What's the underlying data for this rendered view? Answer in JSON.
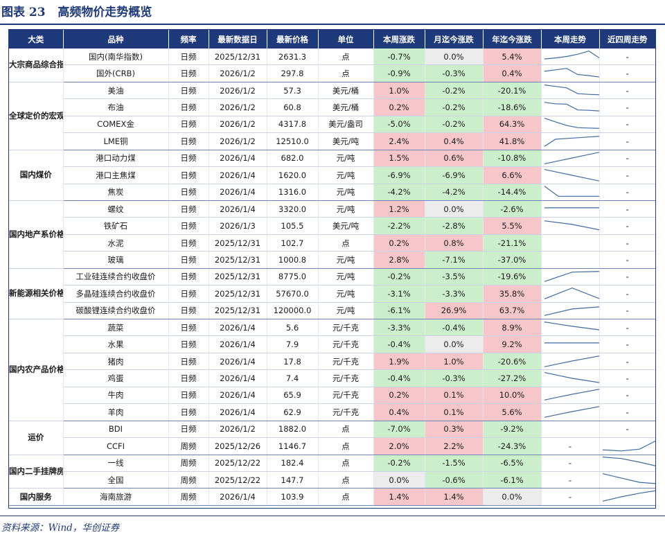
{
  "figure": {
    "label": "图表 23",
    "title": "高频物价走势概览"
  },
  "header": [
    "大类",
    "品种",
    "频率",
    "最新数据日",
    "最新价格",
    "单位",
    "本周涨跌",
    "月迄今涨跌",
    "年迄今涨跌",
    "本周走势",
    "近四周走势"
  ],
  "groups": [
    {
      "category": "大宗商品综合指数",
      "rows": [
        {
          "item": "国内(南华指数)",
          "freq": "日频",
          "date": "2025/12/31",
          "price": "2631.3",
          "unit": "点",
          "wk": "-0.7%",
          "mtd": "0.0%",
          "ytd": "5.4%",
          "week_trend": [
            2,
            2.3,
            2.7,
            3.3,
            4.2,
            2.2
          ],
          "four_week": "-"
        },
        {
          "item": "国外(CRB)",
          "freq": "日频",
          "date": "2026/1/2",
          "price": "297.8",
          "unit": "点",
          "wk": "-0.9%",
          "mtd": "-0.3%",
          "ytd": "0.4%",
          "week_trend": [
            3.2,
            3.6,
            4.0,
            2.3,
            2.0,
            1.6
          ],
          "four_week": "-"
        }
      ]
    },
    {
      "category": "全球定价的宏观品种",
      "rows": [
        {
          "item": "美油",
          "freq": "日频",
          "date": "2026/1/2",
          "price": "57.3",
          "unit": "美元/桶",
          "wk": "1.0%",
          "mtd": "-0.2%",
          "ytd": "-20.1%",
          "week_trend": [
            4.2,
            3.8,
            3.4,
            1.8,
            1.6,
            1.5
          ],
          "four_week": "-"
        },
        {
          "item": "布油",
          "freq": "日频",
          "date": "2026/1/2",
          "price": "60.8",
          "unit": "美元/桶",
          "wk": "0.2%",
          "mtd": "-0.2%",
          "ytd": "-18.6%",
          "week_trend": [
            4.0,
            3.6,
            3.5,
            1.9,
            1.8,
            1.6
          ],
          "four_week": "-"
        },
        {
          "item": "COMEX金",
          "freq": "日频",
          "date": "2026/1/2",
          "price": "4317.8",
          "unit": "美元/盎司",
          "wk": "-5.0%",
          "mtd": "-0.2%",
          "ytd": "64.3%",
          "week_trend": [
            4.2,
            3.2,
            2.2,
            1.6,
            1.5,
            1.4
          ],
          "four_week": "-"
        },
        {
          "item": "LME铜",
          "freq": "日频",
          "date": "2026/1/2",
          "price": "12510.0",
          "unit": "美元/吨",
          "wk": "2.4%",
          "mtd": "0.4%",
          "ytd": "41.8%",
          "week_trend": [
            1.2,
            3.2,
            3.4,
            3.6,
            3.8,
            4.0
          ],
          "four_week": "-"
        }
      ]
    },
    {
      "category": "国内煤价",
      "rows": [
        {
          "item": "港口动力煤",
          "freq": "日频",
          "date": "2026/1/4",
          "price": "682.0",
          "unit": "元/吨",
          "wk": "1.5%",
          "mtd": "0.6%",
          "ytd": "-10.8%",
          "week_trend": [
            1.0,
            1.8,
            2.6,
            3.4,
            4.2
          ],
          "four_week": "-"
        },
        {
          "item": "港口主焦煤",
          "freq": "日频",
          "date": "2026/1/4",
          "price": "1620.0",
          "unit": "元/吨",
          "wk": "-6.9%",
          "mtd": "-6.9%",
          "ytd": "6.6%",
          "week_trend": [
            4.2,
            3.4,
            2.6,
            1.8,
            1.0
          ],
          "four_week": "-"
        },
        {
          "item": "焦炭",
          "freq": "日频",
          "date": "2026/1/4",
          "price": "1316.0",
          "unit": "元/吨",
          "wk": "-4.2%",
          "mtd": "-4.2%",
          "ytd": "-14.4%",
          "week_trend": [
            4.2,
            1.4,
            1.4,
            1.4,
            1.4
          ],
          "four_week": "-"
        }
      ]
    },
    {
      "category": "国内地产系价格",
      "rows": [
        {
          "item": "螺纹",
          "freq": "日频",
          "date": "2026/1/4",
          "price": "3320.0",
          "unit": "元/吨",
          "wk": "1.2%",
          "mtd": "0.0%",
          "ytd": "-2.6%",
          "week_trend": [
            3.0,
            3.0,
            3.0,
            3.0,
            3.0
          ],
          "four_week": "-"
        },
        {
          "item": "铁矿石",
          "freq": "日频",
          "date": "2026/1/3",
          "price": "105.5",
          "unit": "美元/吨",
          "wk": "-2.2%",
          "mtd": "-2.8%",
          "ytd": "5.5%",
          "week_trend": [
            4.0,
            3.0,
            1.5
          ],
          "four_week": "-"
        },
        {
          "item": "水泥",
          "freq": "日频",
          "date": "2025/12/31",
          "price": "102.7",
          "unit": "点",
          "wk": "0.2%",
          "mtd": "0.8%",
          "ytd": "-21.1%",
          "week_trend": [],
          "four_week": "-"
        },
        {
          "item": "玻璃",
          "freq": "日频",
          "date": "2025/12/31",
          "price": "1000.8",
          "unit": "元/吨",
          "wk": "2.8%",
          "mtd": "-7.1%",
          "ytd": "-37.0%",
          "week_trend": [],
          "four_week": "-"
        }
      ]
    },
    {
      "category": "新能源相关价格",
      "rows": [
        {
          "item": "工业硅连续合约收盘价",
          "freq": "日频",
          "date": "2025/12/31",
          "price": "8775.0",
          "unit": "元/吨",
          "wk": "-0.2%",
          "mtd": "-3.5%",
          "ytd": "-19.6%",
          "week_trend": [
            1.2,
            3.8,
            4.0
          ],
          "four_week": "-"
        },
        {
          "item": "多晶硅连续合约收盘价",
          "freq": "日频",
          "date": "2025/12/31",
          "price": "57670.0",
          "unit": "元/吨",
          "wk": "-3.1%",
          "mtd": "-3.3%",
          "ytd": "35.8%",
          "week_trend": [
            1.2,
            4.2,
            1.2
          ],
          "four_week": "-"
        },
        {
          "item": "碳酸锂连续合约收盘价",
          "freq": "日频",
          "date": "2025/12/31",
          "price": "120000.0",
          "unit": "元/吨",
          "wk": "-6.1%",
          "mtd": "26.9%",
          "ytd": "63.7%",
          "week_trend": [
            1.2,
            3.0,
            3.6
          ],
          "four_week": "-"
        }
      ]
    },
    {
      "category": "国内农产品价格",
      "rows": [
        {
          "item": "蔬菜",
          "freq": "日频",
          "date": "2026/1/4",
          "price": "5.6",
          "unit": "元/千克",
          "wk": "-3.3%",
          "mtd": "-0.4%",
          "ytd": "8.9%",
          "week_trend": [
            4.2,
            3.6,
            3.0,
            2.5,
            2.0
          ],
          "four_week": "-"
        },
        {
          "item": "水果",
          "freq": "日频",
          "date": "2026/1/4",
          "price": "7.9",
          "unit": "元/千克",
          "wk": "-0.4%",
          "mtd": "0.0%",
          "ytd": "9.2%",
          "week_trend": [
            3.0,
            3.0,
            3.0,
            3.0,
            3.0
          ],
          "four_week": "-"
        },
        {
          "item": "猪肉",
          "freq": "日频",
          "date": "2026/1/4",
          "price": "17.8",
          "unit": "元/千克",
          "wk": "1.9%",
          "mtd": "1.0%",
          "ytd": "-20.6%",
          "week_trend": [
            1.2,
            2.0,
            2.8,
            3.5,
            4.2
          ],
          "four_week": "-"
        },
        {
          "item": "鸡蛋",
          "freq": "日频",
          "date": "2026/1/4",
          "price": "7.4",
          "unit": "元/千克",
          "wk": "-0.4%",
          "mtd": "-0.3%",
          "ytd": "-27.2%",
          "week_trend": [
            4.2,
            3.4,
            2.6,
            2.0,
            1.4
          ],
          "four_week": "-"
        },
        {
          "item": "牛肉",
          "freq": "日频",
          "date": "2026/1/4",
          "price": "65.9",
          "unit": "元/千克",
          "wk": "0.2%",
          "mtd": "0.1%",
          "ytd": "10.0%",
          "week_trend": [
            1.2,
            2.0,
            2.8,
            3.5,
            4.2
          ],
          "four_week": "-"
        },
        {
          "item": "羊肉",
          "freq": "日频",
          "date": "2026/1/4",
          "price": "62.9",
          "unit": "元/千克",
          "wk": "0.4%",
          "mtd": "0.1%",
          "ytd": "5.6%",
          "week_trend": [
            1.2,
            2.0,
            2.8,
            3.5,
            4.2
          ],
          "four_week": "-"
        }
      ]
    },
    {
      "category": "运价",
      "rows": [
        {
          "item": "BDI",
          "freq": "日频",
          "date": "2026/1/2",
          "price": "1882.0",
          "unit": "点",
          "wk": "-7.0%",
          "mtd": "0.3%",
          "ytd": "-9.2%",
          "week_trend": [],
          "four_week": "-"
        },
        {
          "item": "CCFI",
          "freq": "周频",
          "date": "2025/12/26",
          "price": "1146.7",
          "unit": "点",
          "wk": "2.0%",
          "mtd": "2.2%",
          "ytd": "-24.3%",
          "week_trend": "-",
          "four_week": [
            1.6,
            1.3,
            1.8,
            4.4
          ]
        }
      ]
    },
    {
      "category": "国内二手挂牌房价",
      "rows": [
        {
          "item": "一线",
          "freq": "周频",
          "date": "2025/12/22",
          "price": "182.4",
          "unit": "点",
          "wk": "-0.2%",
          "mtd": "-1.5%",
          "ytd": "-6.5%",
          "week_trend": "-",
          "four_week": [
            4.2,
            3.8,
            2.8,
            1.6
          ]
        },
        {
          "item": "全国",
          "freq": "周频",
          "date": "2025/12/22",
          "price": "147.7",
          "unit": "点",
          "wk": "0.0%",
          "mtd": "-0.6%",
          "ytd": "-6.1%",
          "week_trend": "-",
          "four_week": [
            4.4,
            3.2,
            2.0,
            1.6
          ]
        }
      ]
    },
    {
      "category": "国内服务",
      "rows": [
        {
          "item": "海南旅游",
          "freq": "周频",
          "date": "2026/1/4",
          "price": "103.9",
          "unit": "点",
          "wk": "1.4%",
          "mtd": "1.4%",
          "ytd": "0.0%",
          "week_trend": "-",
          "four_week": [
            1.4,
            2.6,
            3.6,
            4.4
          ]
        }
      ]
    }
  ],
  "source": "资料来源：Wind，华创证券",
  "colors": {
    "header_bg": "#1f3a7a",
    "positive": "#f6c6cb",
    "negative": "#cbeecb",
    "zero": "#ececec",
    "trend_line": "#3b6aa0"
  }
}
